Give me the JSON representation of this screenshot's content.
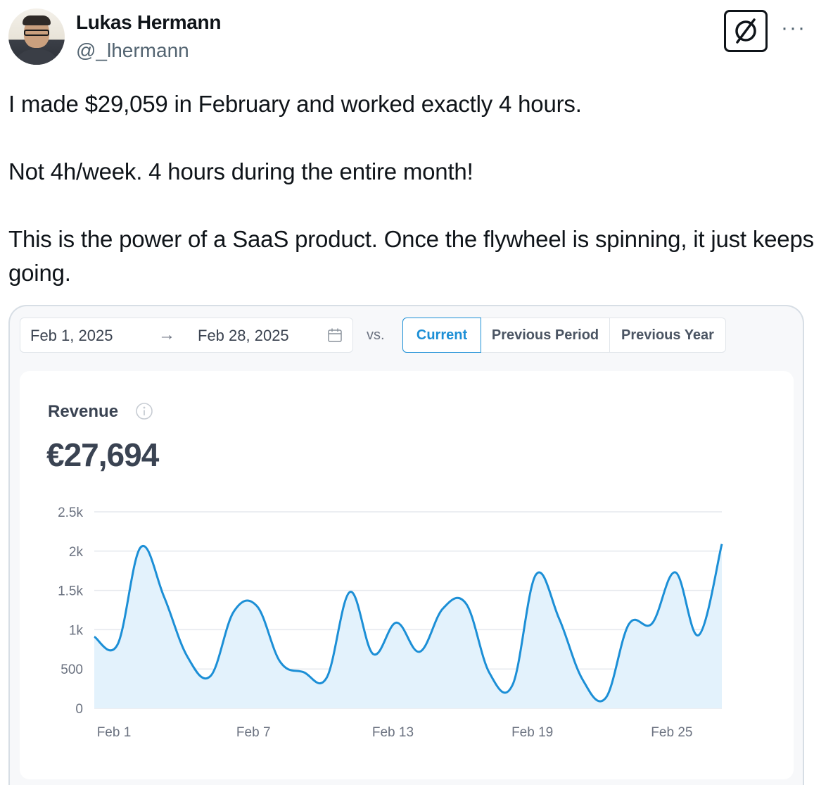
{
  "tweet": {
    "author": {
      "display_name": "Lukas Hermann",
      "handle": "@_lhermann"
    },
    "header_icons": {
      "grok": "grok-icon",
      "more": "more-icon",
      "more_glyph": "···"
    },
    "text": [
      "I made $29,059 in February and worked exactly 4 hours.",
      "Not 4h/week. 4 hours during the entire month!",
      "This is the power of a SaaS product. Once the flywheel is spinning, it just keeps going."
    ]
  },
  "dashboard": {
    "date_range": {
      "start": "Feb 1, 2025",
      "arrow": "→",
      "end": "Feb 28, 2025",
      "icon": "calendar-icon"
    },
    "compare": {
      "vs_label": "vs.",
      "options": [
        "Current",
        "Previous Period",
        "Previous Year"
      ],
      "selected": "Current"
    },
    "metric": {
      "label": "Revenue",
      "info_icon": "info-icon",
      "value": "€27,694"
    },
    "accent_color": "#1c8fd6"
  },
  "chart_data": {
    "type": "area",
    "x": [
      "Feb 1",
      "Feb 2",
      "Feb 3",
      "Feb 4",
      "Feb 5",
      "Feb 6",
      "Feb 7",
      "Feb 8",
      "Feb 9",
      "Feb 10",
      "Feb 11",
      "Feb 12",
      "Feb 13",
      "Feb 14",
      "Feb 15",
      "Feb 16",
      "Feb 17",
      "Feb 18",
      "Feb 19",
      "Feb 20",
      "Feb 21",
      "Feb 22",
      "Feb 23",
      "Feb 24",
      "Feb 25",
      "Feb 26",
      "Feb 27",
      "Feb 28"
    ],
    "series": [
      {
        "values": [
          910,
          810,
          2050,
          1420,
          660,
          410,
          1230,
          1300,
          590,
          460,
          390,
          1480,
          690,
          1090,
          720,
          1270,
          1330,
          450,
          300,
          1700,
          1140,
          370,
          130,
          1070,
          1080,
          1730,
          930,
          2090
        ]
      }
    ],
    "x_tick_labels": [
      "Feb 1",
      "Feb 7",
      "Feb 13",
      "Feb 19",
      "Feb 25"
    ],
    "y_tick_labels": [
      "0",
      "500",
      "1k",
      "1.5k",
      "2k",
      "2.5k"
    ],
    "ylim": [
      0,
      2500
    ],
    "grid": true,
    "line_color": "#1c8fd6",
    "fill_color": "#e3f2fc"
  }
}
